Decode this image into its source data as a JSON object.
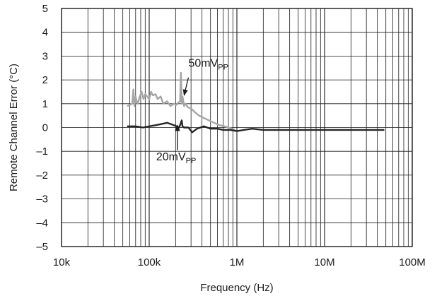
{
  "chart_data": {
    "type": "line",
    "title": "",
    "xlabel": "Frequency (Hz)",
    "ylabel": "Remote Channel Error (°C)",
    "x_scale": "log",
    "xlim": [
      10000,
      100000000
    ],
    "ylim": [
      -5,
      5
    ],
    "x_ticks": [
      {
        "value": 10000,
        "label": "10k"
      },
      {
        "value": 100000,
        "label": "100k"
      },
      {
        "value": 1000000,
        "label": "1M"
      },
      {
        "value": 10000000,
        "label": "10M"
      },
      {
        "value": 100000000,
        "label": "100M"
      }
    ],
    "y_ticks": [
      {
        "value": 5,
        "label": "5"
      },
      {
        "value": 4,
        "label": "4"
      },
      {
        "value": 3,
        "label": "3"
      },
      {
        "value": 2,
        "label": "2"
      },
      {
        "value": 1,
        "label": "1"
      },
      {
        "value": 0,
        "label": "0"
      },
      {
        "value": -1,
        "label": "–1"
      },
      {
        "value": -2,
        "label": "–2"
      },
      {
        "value": -3,
        "label": "–3"
      },
      {
        "value": -4,
        "label": "–4"
      },
      {
        "value": -5,
        "label": "–5"
      }
    ],
    "grid": true,
    "legend": "none",
    "series": [
      {
        "label_main": "50mV",
        "label_sub": "PP",
        "color": "#a6a6a6",
        "x": [
          56000,
          60000,
          64000,
          66000,
          68000,
          70000,
          72000,
          74000,
          78000,
          82000,
          86000,
          90000,
          95000,
          100000,
          105000,
          110000,
          118000,
          125000,
          135000,
          145000,
          160000,
          175000,
          190000,
          205000,
          215000,
          225000,
          230000,
          235000,
          240000,
          245000,
          250000,
          260000,
          275000,
          300000,
          330000,
          370000,
          420000,
          480000,
          550000,
          630000,
          720000,
          800000,
          880000,
          950000
        ],
        "y": [
          0.9,
          0.95,
          1.0,
          1.6,
          0.9,
          1.3,
          1.1,
          1.0,
          1.3,
          1.5,
          1.2,
          1.4,
          1.3,
          1.2,
          1.5,
          1.35,
          1.4,
          1.2,
          1.3,
          1.0,
          1.1,
          0.9,
          1.0,
          0.95,
          1.05,
          1.1,
          2.3,
          1.0,
          1.3,
          1.1,
          0.9,
          1.0,
          0.85,
          0.8,
          0.65,
          0.5,
          0.4,
          0.3,
          0.2,
          0.1,
          0.05,
          0.0,
          -0.05,
          -0.1
        ]
      },
      {
        "label_main": "20mV",
        "label_sub": "PP",
        "color": "#262626",
        "x": [
          56000,
          70000,
          85000,
          100000,
          120000,
          140000,
          160000,
          190000,
          220000,
          235000,
          240000,
          250000,
          280000,
          310000,
          350000,
          420000,
          500000,
          600000,
          700000,
          850000,
          1000000,
          1200000,
          1500000,
          2000000,
          3000000,
          5000000,
          8000000,
          12000000,
          20000000,
          30000000,
          40000000,
          48000000
        ],
        "y": [
          0.05,
          0.05,
          0.0,
          0.05,
          0.1,
          0.15,
          0.2,
          0.1,
          0.0,
          0.3,
          0.05,
          0.0,
          0.0,
          -0.2,
          -0.05,
          0.05,
          -0.05,
          -0.05,
          -0.1,
          -0.1,
          -0.15,
          -0.1,
          -0.05,
          -0.1,
          -0.1,
          -0.1,
          -0.1,
          -0.1,
          -0.1,
          -0.1,
          -0.1,
          -0.1
        ]
      }
    ],
    "annotations": [
      {
        "text_main": "50mV",
        "text_sub": "PP",
        "points_to_series": 0
      },
      {
        "text_main": "20mV",
        "text_sub": "PP",
        "points_to_series": 1
      }
    ]
  }
}
